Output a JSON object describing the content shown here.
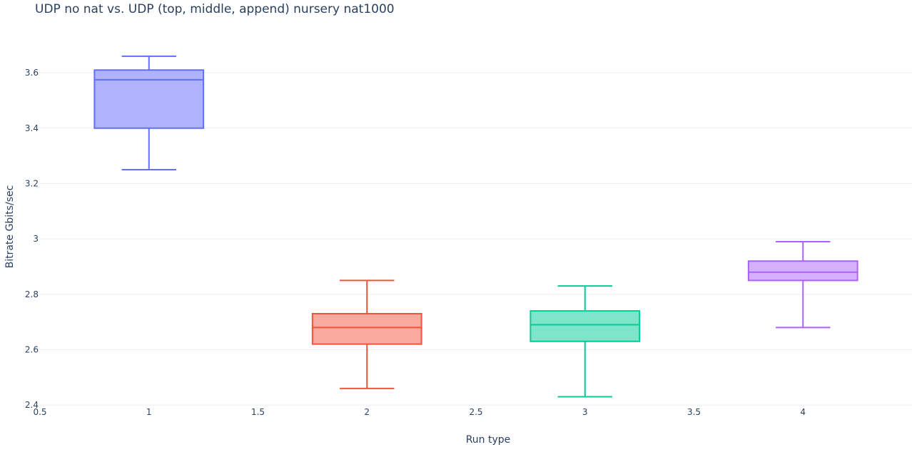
{
  "chart_data": {
    "type": "box",
    "title": "UDP no nat vs. UDP (top, middle, append) nursery nat1000",
    "xlabel": "Run type",
    "ylabel": "Bitrate Gbits/sec",
    "xlim": [
      0.5,
      4.5
    ],
    "ylim": [
      2.39,
      3.76
    ],
    "x_ticks": [
      "0.5",
      "1",
      "1.5",
      "2",
      "2.5",
      "3",
      "3.5",
      "4"
    ],
    "y_ticks": [
      "2.4",
      "2.6",
      "2.8",
      "3",
      "3.2",
      "3.4",
      "3.6"
    ],
    "grid": true,
    "series": [
      {
        "x": 1,
        "min": 3.25,
        "q1": 3.4,
        "median": 3.575,
        "q3": 3.61,
        "max": 3.66,
        "color": "#636efa",
        "fill": "#aeb3fc"
      },
      {
        "x": 2,
        "min": 2.46,
        "q1": 2.62,
        "median": 2.68,
        "q3": 2.73,
        "max": 2.85,
        "color": "#ef553b",
        "fill": "#f7aa9d"
      },
      {
        "x": 3,
        "min": 2.43,
        "q1": 2.63,
        "median": 2.69,
        "q3": 2.74,
        "max": 2.83,
        "color": "#00cc96",
        "fill": "#7fe5ca"
      },
      {
        "x": 4,
        "min": 2.68,
        "q1": 2.85,
        "median": 2.88,
        "q3": 2.92,
        "max": 2.99,
        "color": "#ab63fa",
        "fill": "#d5b1fc"
      }
    ]
  }
}
